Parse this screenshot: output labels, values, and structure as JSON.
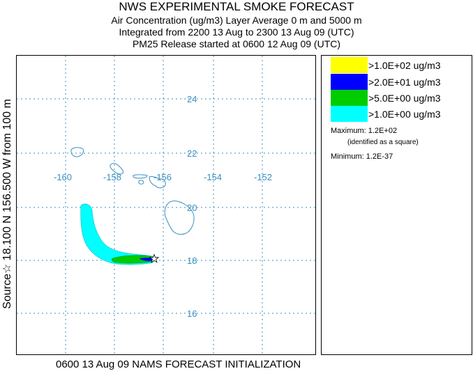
{
  "header": {
    "title": "NWS EXPERIMENTAL SMOKE FORECAST",
    "line2": "Air Concentration (ug/m3) Layer Average    0 m and  5000 m",
    "line3": "Integrated from 2200 13 Aug to 2300 13 Aug 09 (UTC)",
    "line4": "PM25 Release started at 0600 12 Aug 09 (UTC)"
  },
  "side_label": "Source☆ 18.100 N 156.500 W     from  100 m",
  "footer": "0600 13 Aug 09 NAMS FORECAST INITIALIZATION",
  "map": {
    "lon_labels": [
      "-160",
      "-158",
      "-156",
      "-154",
      "-152"
    ],
    "lat_labels": [
      "24",
      "22",
      "20",
      "18",
      "16"
    ],
    "gridline_color": "#3a8fbf",
    "coast_color": "#3a8fbf"
  },
  "legend": {
    "items": [
      {
        "label": ">1.0E+02 ug/m3",
        "color": "#ffff00"
      },
      {
        "label": ">2.0E+01 ug/m3",
        "color": "#0000ff"
      },
      {
        "label": ">5.0E+00 ug/m3",
        "color": "#00cc00"
      },
      {
        "label": ">1.0E+00 ug/m3",
        "color": "#00ffff"
      }
    ],
    "maximum": "Maximum: 1.2E+02",
    "maximum_note": "(identified as a square)",
    "minimum": "Minimum: 1.2E-37"
  }
}
